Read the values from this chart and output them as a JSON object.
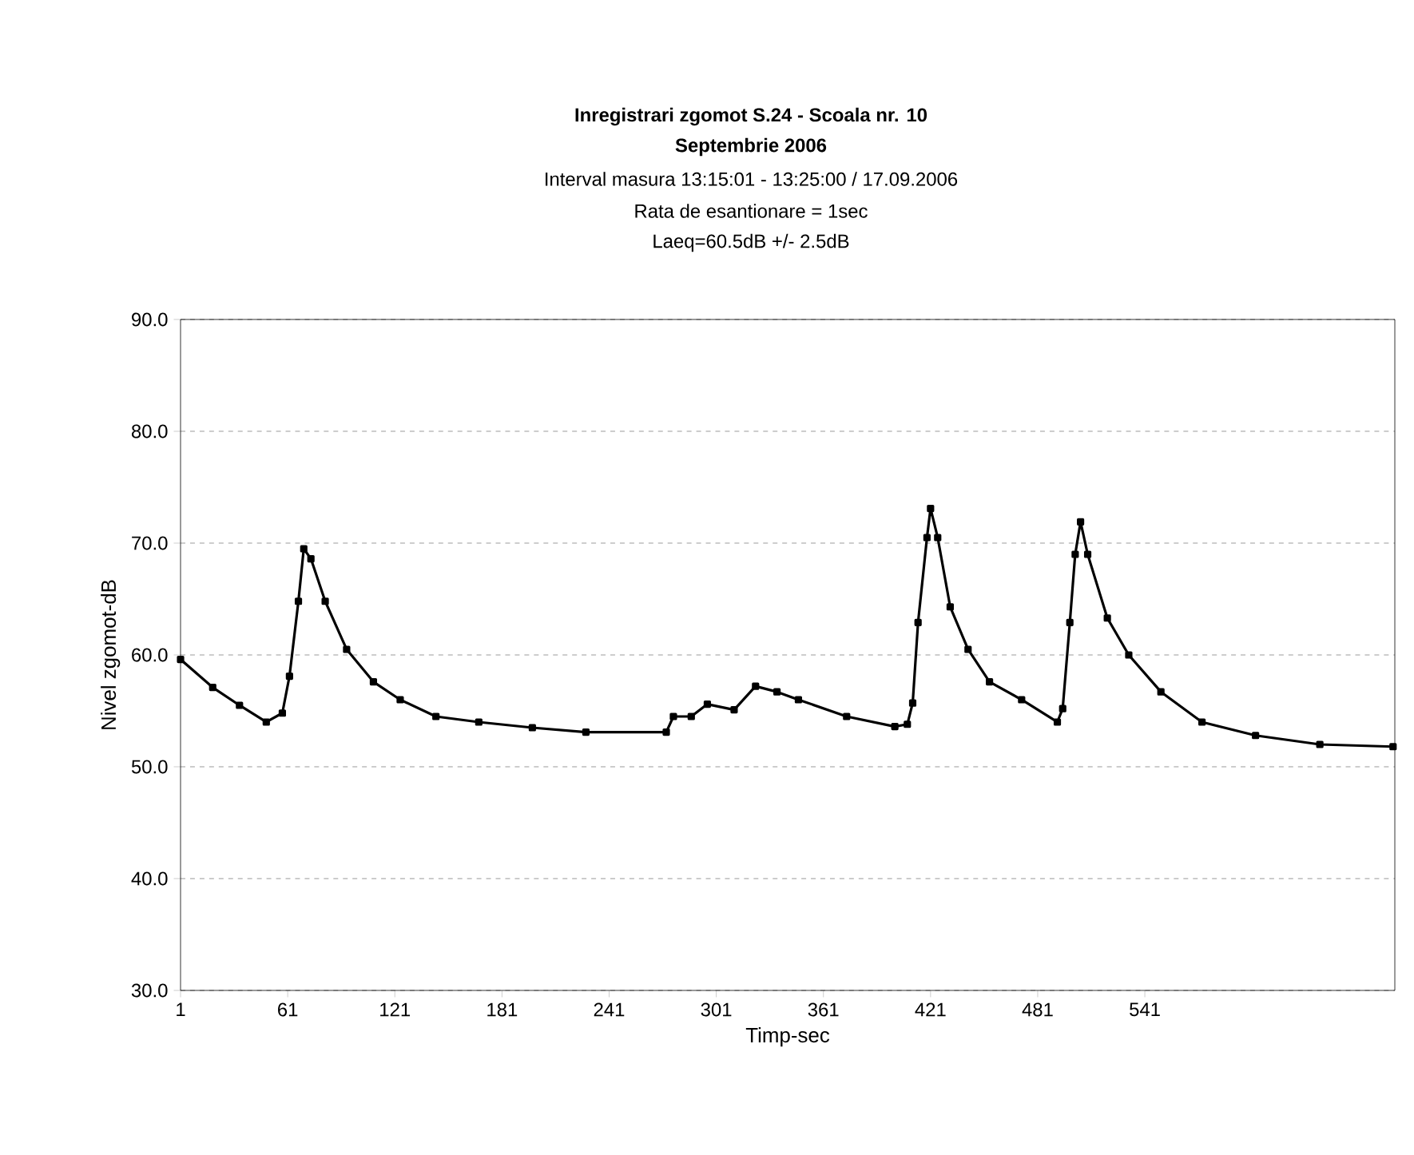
{
  "chart_data": {
    "type": "line",
    "title": "Inregistrari zgomot S.24 - Scoala nr. 10",
    "subtitle": "Septembrie 2006",
    "annotations": [
      "Interval masura 13:15:01 - 13:25:00 / 17.09.2006",
      "Rata de esantionare = 1sec",
      "Laeq=60.5dB +/- 2.5dB"
    ],
    "xlabel": "Timp-sec",
    "ylabel": "Nivel zgomot-dB",
    "x": [
      1,
      19,
      34,
      49,
      58,
      62,
      67,
      70,
      74,
      82,
      94,
      109,
      124,
      144,
      168,
      198,
      228,
      273,
      277,
      287,
      296,
      311,
      323,
      335,
      347,
      374,
      401,
      408,
      411,
      414,
      419,
      421,
      425,
      432,
      442,
      454,
      472,
      492,
      495,
      499,
      502,
      505,
      509,
      520,
      532,
      550,
      573,
      603,
      639,
      680
    ],
    "values": [
      59.6,
      57.1,
      55.5,
      54.0,
      54.8,
      58.1,
      64.8,
      69.5,
      68.6,
      64.8,
      60.5,
      57.6,
      56.0,
      54.5,
      54.0,
      53.5,
      53.1,
      53.1,
      54.5,
      54.5,
      55.6,
      55.1,
      57.2,
      56.7,
      56.0,
      54.5,
      53.6,
      53.8,
      55.7,
      62.9,
      70.5,
      73.1,
      70.5,
      64.3,
      60.5,
      57.6,
      56.0,
      54.0,
      55.2,
      62.9,
      69.0,
      71.9,
      69.0,
      63.3,
      60.0,
      56.7,
      54.0,
      52.8,
      52.0,
      51.8
    ],
    "color": "#000000",
    "marker": "square",
    "line_style": "solid",
    "grid": "y",
    "xlim": [
      1,
      681
    ],
    "xticks": [
      1,
      61,
      121,
      181,
      241,
      301,
      361,
      421,
      481,
      541
    ],
    "ylim": [
      30,
      90
    ],
    "yticks": [
      {
        "value": 30,
        "label": "30.0"
      },
      {
        "value": 40,
        "label": "40.0"
      },
      {
        "value": 50,
        "label": "50.0"
      },
      {
        "value": 60,
        "label": "60.0"
      },
      {
        "value": 70,
        "label": "70.0"
      },
      {
        "value": 80,
        "label": "80.0"
      },
      {
        "value": 90,
        "label": "90.0"
      }
    ]
  }
}
